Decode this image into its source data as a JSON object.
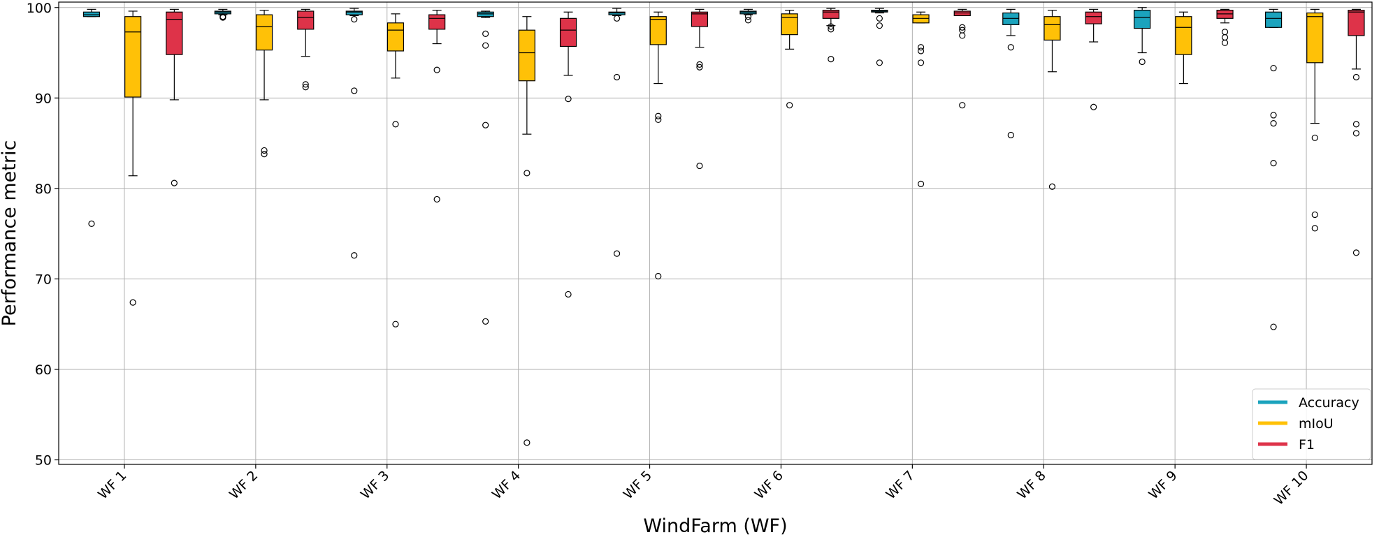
{
  "chart_data": {
    "type": "boxplot",
    "title": "",
    "xlabel": "WindFarm (WF)",
    "ylabel": "Performance metric",
    "ylim": [
      49.5,
      100.6
    ],
    "yticks": [
      50,
      60,
      70,
      80,
      90,
      100
    ],
    "grid": true,
    "legend_position": "bottom-right",
    "categories": [
      "WF 1",
      "WF 2",
      "WF 3",
      "WF 4",
      "WF 5",
      "WF 6",
      "WF 7",
      "WF 8",
      "WF 9",
      "WF 10"
    ],
    "series": [
      {
        "name": "Accuracy",
        "color": "#1ba3bd",
        "boxes": [
          {
            "whislo": 99.0,
            "q1": 99.0,
            "med": 99.2,
            "q3": 99.5,
            "whishi": 99.8,
            "fliers": [
              76.1
            ]
          },
          {
            "whislo": 99.2,
            "q1": 99.3,
            "med": 99.5,
            "q3": 99.6,
            "whishi": 99.8,
            "fliers": [
              98.9,
              99.0
            ]
          },
          {
            "whislo": 99.1,
            "q1": 99.2,
            "med": 99.5,
            "q3": 99.6,
            "whishi": 99.9,
            "fliers": [
              98.7,
              90.8,
              72.6
            ]
          },
          {
            "whislo": 98.9,
            "q1": 99.0,
            "med": 99.3,
            "q3": 99.5,
            "whishi": 99.6,
            "fliers": [
              97.1,
              95.8,
              87.0,
              65.3
            ]
          },
          {
            "whislo": 99.1,
            "q1": 99.2,
            "med": 99.4,
            "q3": 99.5,
            "whishi": 99.9,
            "fliers": [
              98.8,
              92.3,
              72.8
            ]
          },
          {
            "whislo": 99.2,
            "q1": 99.3,
            "med": 99.5,
            "q3": 99.6,
            "whishi": 99.8,
            "fliers": [
              99.0,
              98.6
            ]
          },
          {
            "whislo": 99.4,
            "q1": 99.5,
            "med": 99.6,
            "q3": 99.7,
            "whishi": 99.9,
            "fliers": [
              98.8,
              98.0,
              93.9
            ]
          },
          {
            "whislo": 96.9,
            "q1": 98.1,
            "med": 98.8,
            "q3": 99.4,
            "whishi": 99.8,
            "fliers": [
              95.6,
              85.9
            ]
          },
          {
            "whislo": 95.0,
            "q1": 97.7,
            "med": 98.9,
            "q3": 99.7,
            "whishi": 100.0,
            "fliers": [
              94.0
            ]
          },
          {
            "whislo": 97.8,
            "q1": 97.8,
            "med": 98.8,
            "q3": 99.5,
            "whishi": 99.8,
            "fliers": [
              93.3,
              88.1,
              87.2,
              82.8,
              64.7
            ]
          }
        ]
      },
      {
        "name": "mIoU",
        "color": "#ffc107",
        "boxes": [
          {
            "whislo": 81.4,
            "q1": 90.1,
            "med": 97.3,
            "q3": 99.0,
            "whishi": 99.6,
            "fliers": [
              67.4
            ]
          },
          {
            "whislo": 89.8,
            "q1": 95.3,
            "med": 97.9,
            "q3": 99.2,
            "whishi": 99.7,
            "fliers": [
              84.2,
              83.8
            ]
          },
          {
            "whislo": 92.2,
            "q1": 95.2,
            "med": 97.5,
            "q3": 98.3,
            "whishi": 99.3,
            "fliers": [
              87.1,
              65.0
            ]
          },
          {
            "whislo": 86.0,
            "q1": 91.9,
            "med": 95.0,
            "q3": 97.5,
            "whishi": 99.0,
            "fliers": [
              81.7,
              51.9
            ]
          },
          {
            "whislo": 91.6,
            "q1": 95.9,
            "med": 98.7,
            "q3": 99.0,
            "whishi": 99.5,
            "fliers": [
              88.0,
              87.6,
              70.3
            ]
          },
          {
            "whislo": 95.4,
            "q1": 97.0,
            "med": 98.9,
            "q3": 99.3,
            "whishi": 99.7,
            "fliers": [
              89.2
            ]
          },
          {
            "whislo": 98.3,
            "q1": 98.3,
            "med": 98.8,
            "q3": 99.2,
            "whishi": 99.5,
            "fliers": [
              95.6,
              95.2,
              93.9,
              80.5
            ]
          },
          {
            "whislo": 92.9,
            "q1": 96.4,
            "med": 98.1,
            "q3": 99.0,
            "whishi": 99.7,
            "fliers": [
              80.2
            ]
          },
          {
            "whislo": 91.6,
            "q1": 94.8,
            "med": 97.8,
            "q3": 99.0,
            "whishi": 99.5,
            "fliers": []
          },
          {
            "whislo": 87.2,
            "q1": 93.9,
            "med": 99.0,
            "q3": 99.4,
            "whishi": 99.8,
            "fliers": [
              85.6,
              77.1,
              75.6
            ]
          }
        ]
      },
      {
        "name": "F1",
        "color": "#de3349",
        "boxes": [
          {
            "whislo": 89.8,
            "q1": 94.8,
            "med": 98.7,
            "q3": 99.5,
            "whishi": 99.8,
            "fliers": [
              80.6
            ]
          },
          {
            "whislo": 94.6,
            "q1": 97.6,
            "med": 98.9,
            "q3": 99.6,
            "whishi": 99.8,
            "fliers": [
              91.5,
              91.2
            ]
          },
          {
            "whislo": 96.0,
            "q1": 97.6,
            "med": 98.8,
            "q3": 99.2,
            "whishi": 99.7,
            "fliers": [
              93.1,
              78.8
            ]
          },
          {
            "whislo": 92.5,
            "q1": 95.7,
            "med": 97.5,
            "q3": 98.8,
            "whishi": 99.5,
            "fliers": [
              89.9,
              68.3
            ]
          },
          {
            "whislo": 95.6,
            "q1": 97.9,
            "med": 99.3,
            "q3": 99.5,
            "whishi": 99.8,
            "fliers": [
              93.7,
              93.4,
              82.5
            ]
          },
          {
            "whislo": 98.0,
            "q1": 98.8,
            "med": 99.5,
            "q3": 99.7,
            "whishi": 99.9,
            "fliers": [
              97.9,
              97.6,
              94.3
            ]
          },
          {
            "whislo": 99.1,
            "q1": 99.1,
            "med": 99.4,
            "q3": 99.6,
            "whishi": 99.8,
            "fliers": [
              97.8,
              97.5,
              96.9,
              89.2
            ]
          },
          {
            "whislo": 96.2,
            "q1": 98.2,
            "med": 99.0,
            "q3": 99.5,
            "whishi": 99.8,
            "fliers": [
              89.0
            ]
          },
          {
            "whislo": 98.3,
            "q1": 98.8,
            "med": 99.3,
            "q3": 99.7,
            "whishi": 99.8,
            "fliers": [
              97.3,
              96.7,
              96.1
            ]
          },
          {
            "whislo": 93.2,
            "q1": 96.9,
            "med": 99.5,
            "q3": 99.7,
            "whishi": 99.8,
            "fliers": [
              92.3,
              87.1,
              86.1,
              72.9
            ]
          }
        ]
      }
    ],
    "legend": [
      {
        "label": "Accuracy",
        "color": "#1ba3bd"
      },
      {
        "label": "mIoU",
        "color": "#ffc107"
      },
      {
        "label": "F1",
        "color": "#de3349"
      }
    ]
  }
}
